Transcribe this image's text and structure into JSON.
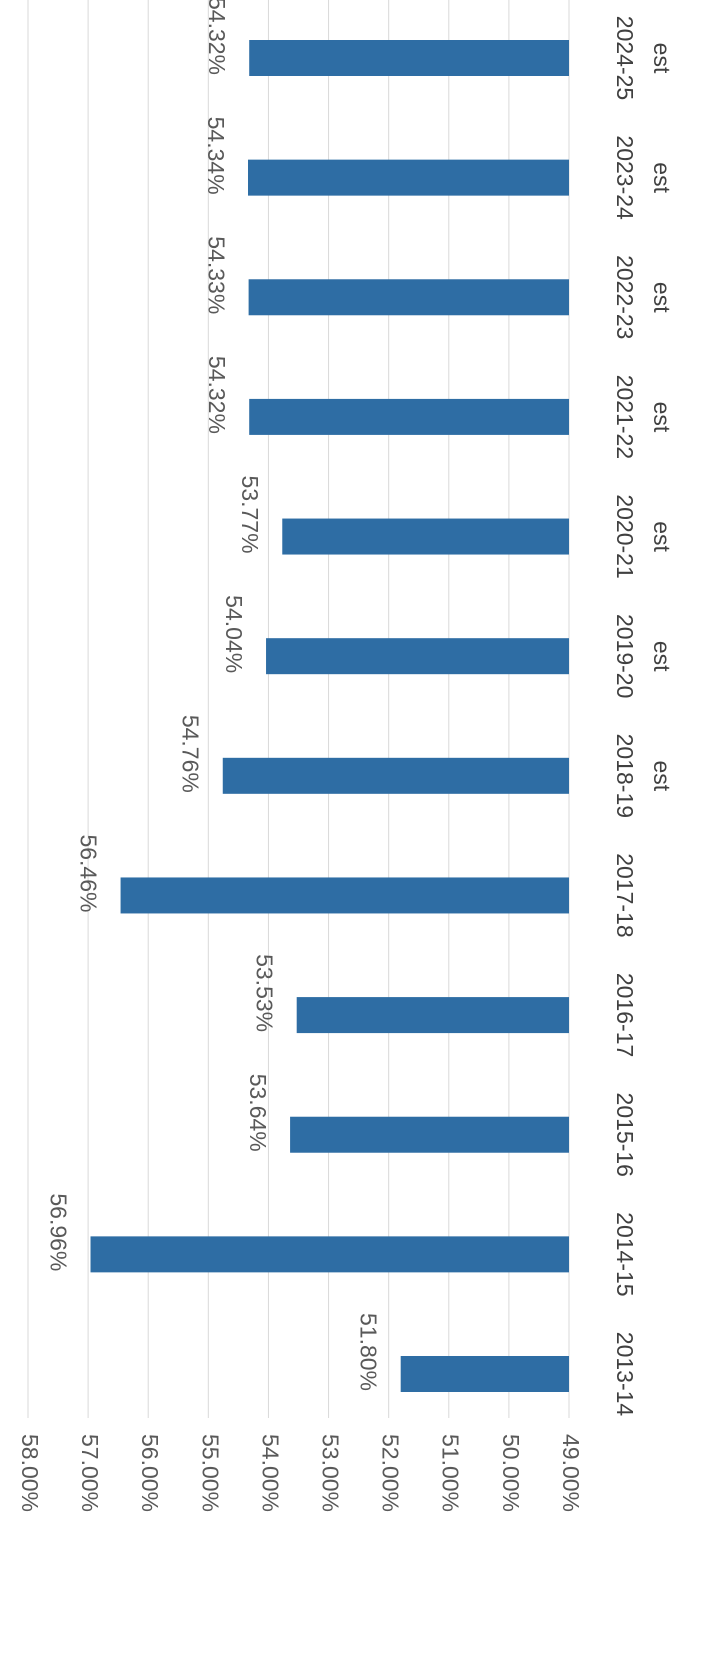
{
  "chart_data": {
    "type": "bar",
    "title": "",
    "xlabel": "",
    "ylabel": "",
    "ylim": [
      0.49,
      0.58
    ],
    "y_ticks": [
      "58.00%",
      "57.00%",
      "56.00%",
      "55.00%",
      "54.00%",
      "53.00%",
      "52.00%",
      "51.00%",
      "50.00%",
      "49.00%"
    ],
    "grid": true,
    "legend": "none",
    "orientation": "rotated 90 degrees clockwise",
    "bar_color": "#2e6da4",
    "categories": [
      [
        "2013-14"
      ],
      [
        "2014-15"
      ],
      [
        "2015-16"
      ],
      [
        "2016-17"
      ],
      [
        "2017-18"
      ],
      [
        "2018-19",
        "est"
      ],
      [
        "2019-20",
        "est"
      ],
      [
        "2020-21",
        "est"
      ],
      [
        "2021-22",
        "est"
      ],
      [
        "2022-23",
        "est"
      ],
      [
        "2023-24",
        "est"
      ],
      [
        "2024-25",
        "est"
      ]
    ],
    "values": [
      0.518,
      0.5696,
      0.5364,
      0.5353,
      0.5646,
      0.5476,
      0.5404,
      0.5377,
      0.5432,
      0.5433,
      0.5434,
      0.5432
    ],
    "data_labels": [
      "51.80%",
      "56.96%",
      "53.64%",
      "53.53%",
      "56.46%",
      "54.76%",
      "54.04%",
      "53.77%",
      "54.32%",
      "54.33%",
      "54.34%",
      "54.32%"
    ]
  }
}
